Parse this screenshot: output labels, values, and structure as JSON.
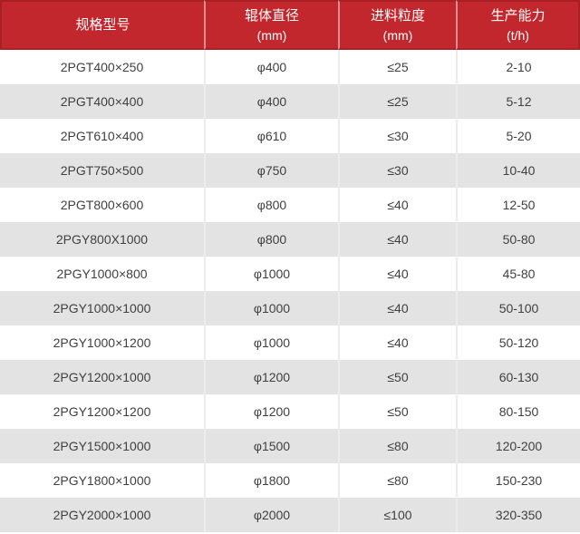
{
  "colors": {
    "header_background": "#c1272d",
    "header_text": "#ffffff",
    "header_divider": "#d98f92",
    "header_outer_border": "#a81f24",
    "row_alternate_gray": "#e3e3e3",
    "row_white": "#ffffff",
    "body_divider": "#ececec",
    "body_text": "#404040"
  },
  "chart_data": {
    "type": "table",
    "columns": [
      {
        "label": "规格型号",
        "unit": ""
      },
      {
        "label": "辊体直径",
        "unit": "(mm)"
      },
      {
        "label": "进料粒度",
        "unit": "(mm)"
      },
      {
        "label": "生产能力",
        "unit": "(t/h)"
      }
    ],
    "rows": [
      [
        "2PGT400×250",
        "φ400",
        "≤25",
        "2-10"
      ],
      [
        "2PGT400×400",
        "φ400",
        "≤25",
        "5-12"
      ],
      [
        "2PGT610×400",
        "φ610",
        "≤30",
        "5-20"
      ],
      [
        "2PGT750×500",
        "φ750",
        "≤30",
        "10-40"
      ],
      [
        "2PGT800×600",
        "φ800",
        "≤40",
        "12-50"
      ],
      [
        "2PGY800X1000",
        "φ800",
        "≤40",
        "50-80"
      ],
      [
        "2PGY1000×800",
        "φ1000",
        "≤40",
        "45-80"
      ],
      [
        "2PGY1000×1000",
        "φ1000",
        "≤40",
        "50-100"
      ],
      [
        "2PGY1000×1200",
        "φ1000",
        "≤40",
        "50-120"
      ],
      [
        "2PGY1200×1000",
        "φ1200",
        "≤50",
        "60-130"
      ],
      [
        "2PGY1200×1200",
        "φ1200",
        "≤50",
        "80-150"
      ],
      [
        "2PGY1500×1000",
        "φ1500",
        "≤80",
        "120-200"
      ],
      [
        "2PGY1800×1000",
        "φ1800",
        "≤80",
        "150-230"
      ],
      [
        "2PGY2000×1000",
        "φ2000",
        "≤100",
        "320-350"
      ]
    ]
  }
}
